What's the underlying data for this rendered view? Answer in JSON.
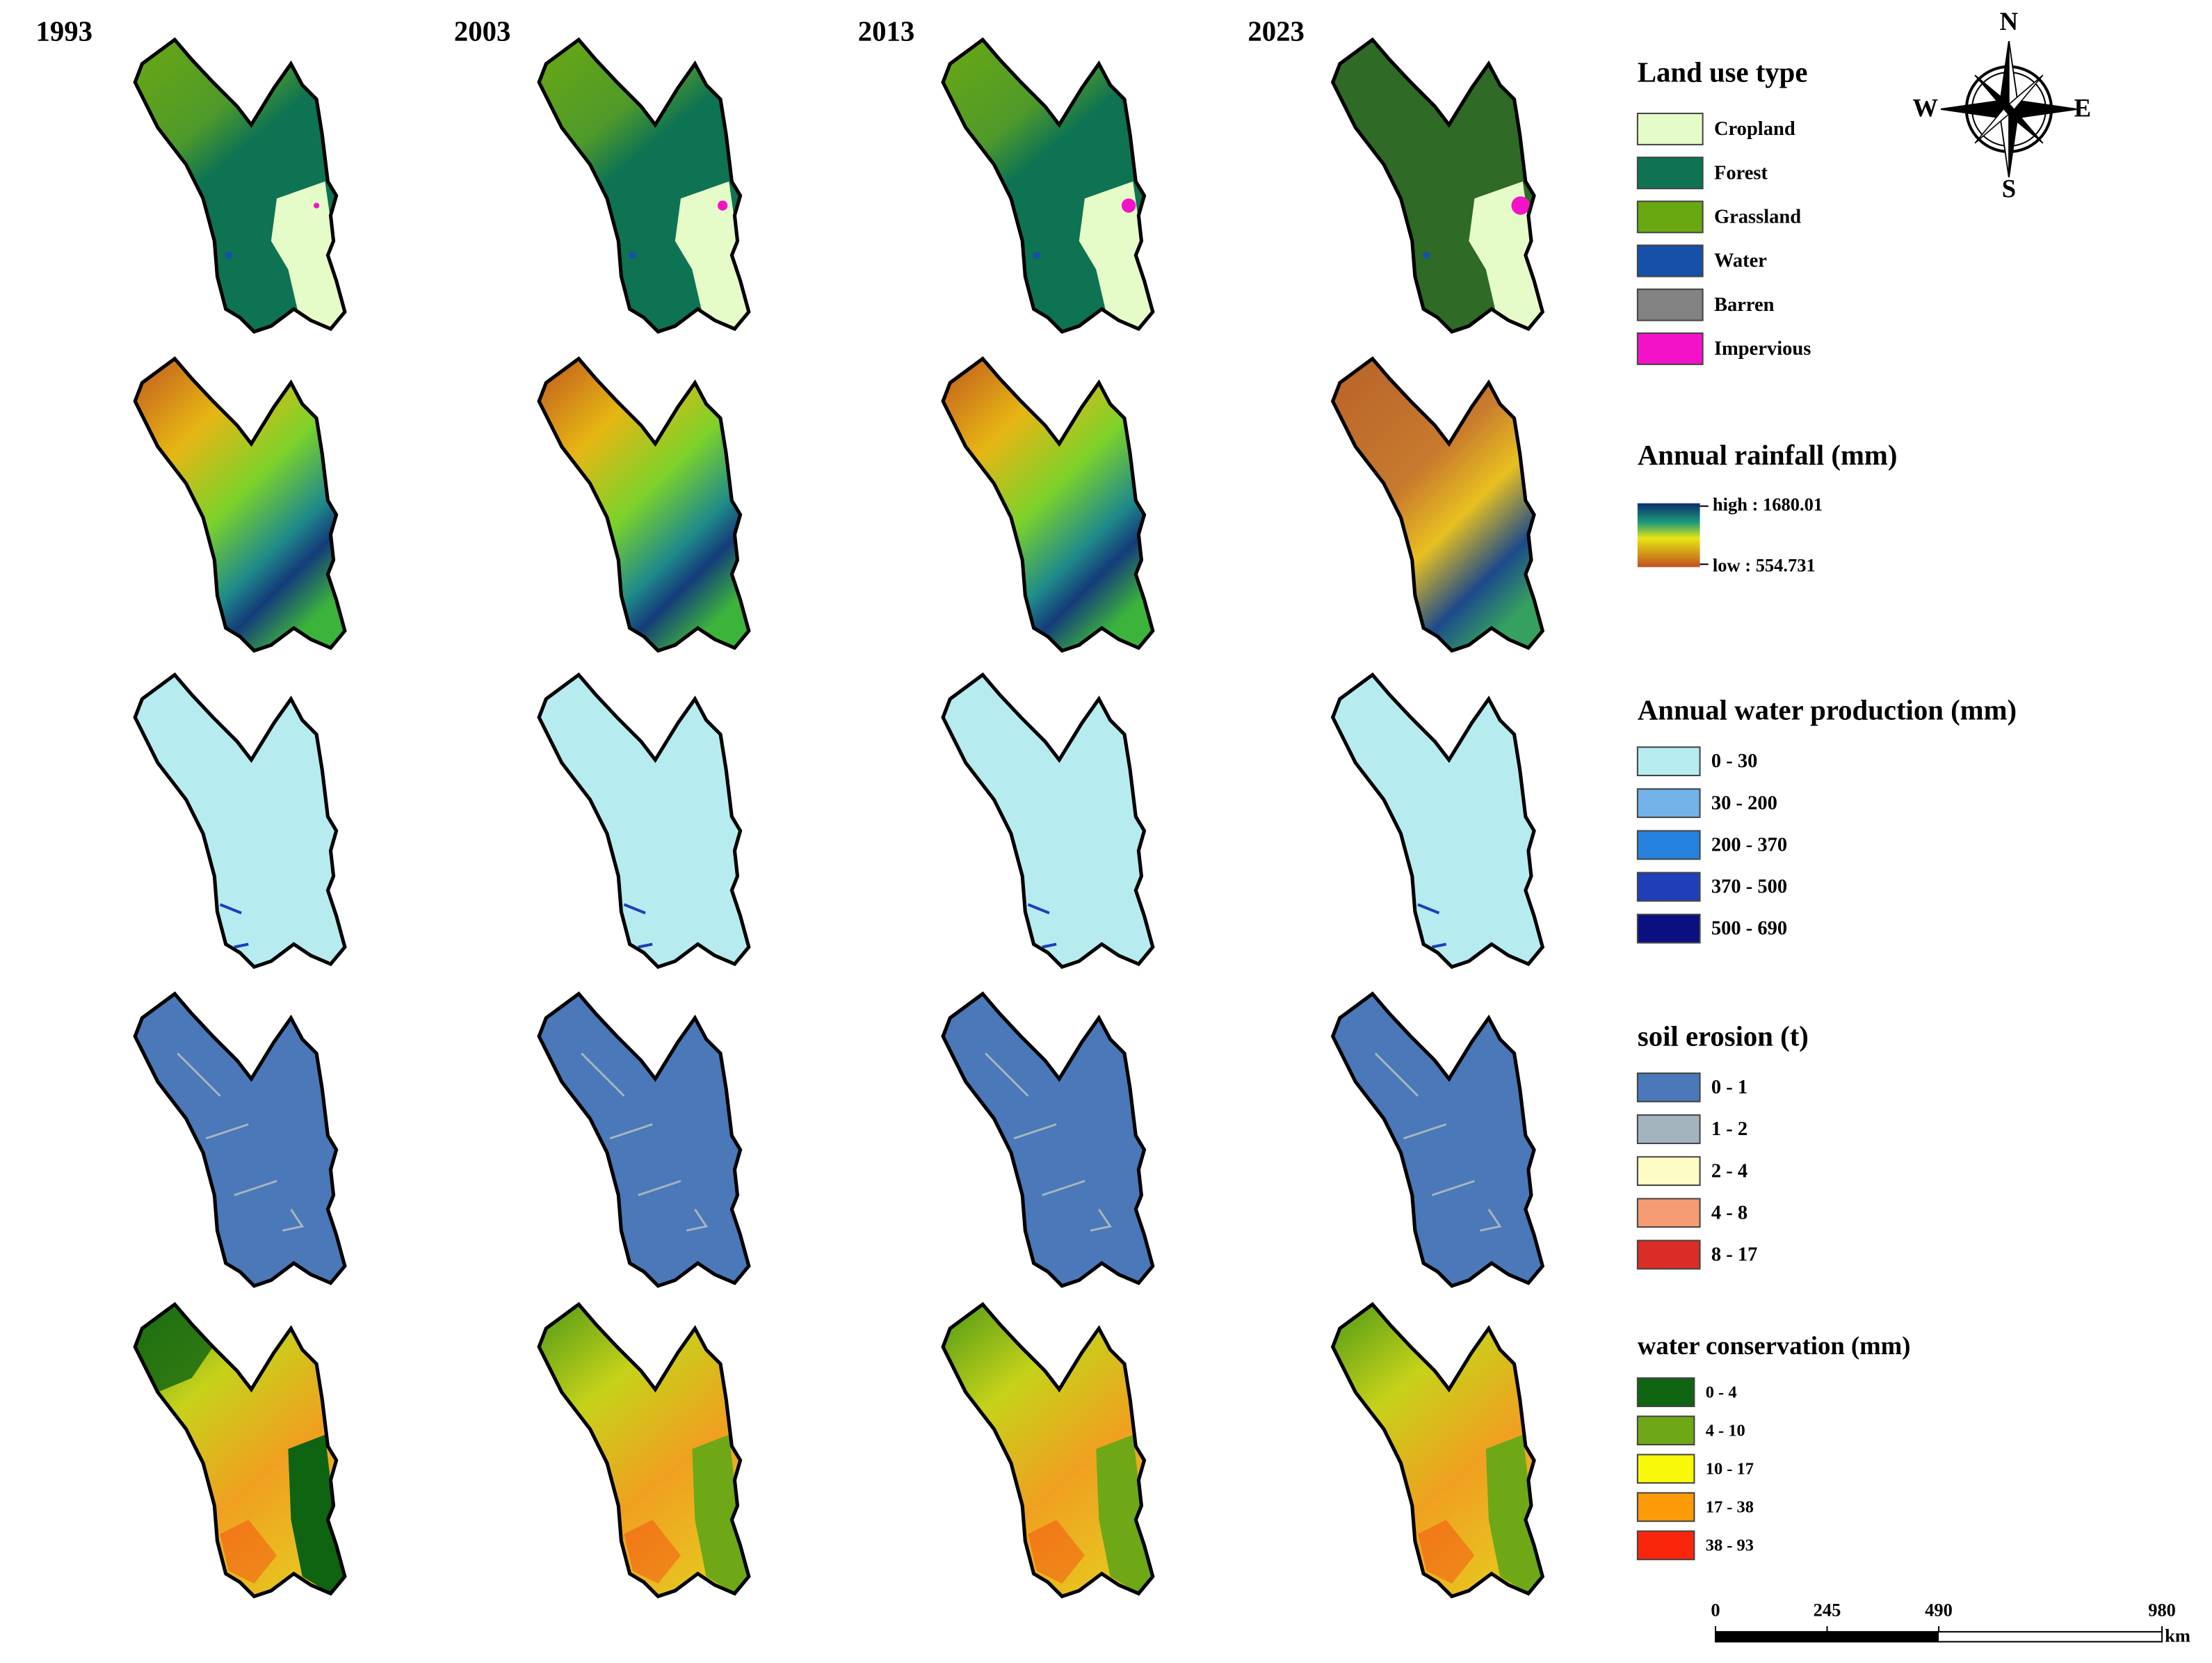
{
  "years": [
    "1993",
    "2003",
    "2013",
    "2023"
  ],
  "legends": [
    {
      "title": "Land use type",
      "items": [
        {
          "label": "Cropland",
          "color": "#e6fcc8"
        },
        {
          "label": "Forest",
          "color": "#0e7352"
        },
        {
          "label": "Grassland",
          "color": "#6aa812"
        },
        {
          "label": "Water",
          "color": "#1650a8"
        },
        {
          "label": "Barren",
          "color": "#828282"
        },
        {
          "label": "Impervious",
          "color": "#f412c8"
        }
      ]
    },
    {
      "title": "Annual rainfall (mm)",
      "high": "high : 1680.01",
      "low": "low : 554.731"
    },
    {
      "title": "Annual water production (mm)",
      "items": [
        {
          "label": "0 - 30",
          "color": "#b6ecf0"
        },
        {
          "label": "30 - 200",
          "color": "#72b2e8"
        },
        {
          "label": "200 - 370",
          "color": "#2682de"
        },
        {
          "label": "370 - 500",
          "color": "#1f3eb8"
        },
        {
          "label": "500 - 690",
          "color": "#0a0f82"
        }
      ]
    },
    {
      "title": "soil erosion (t)",
      "items": [
        {
          "label": "0 - 1",
          "color": "#4a78b8"
        },
        {
          "label": "1 - 2",
          "color": "#a4b4bf"
        },
        {
          "label": "2 - 4",
          "color": "#fdfcc4"
        },
        {
          "label": "4 - 8",
          "color": "#f59c74"
        },
        {
          "label": "8 - 17",
          "color": "#da2d27"
        }
      ]
    },
    {
      "title": "water conservation (mm)",
      "items": [
        {
          "label": "0 - 4",
          "color": "#0e6410"
        },
        {
          "label": "4 - 10",
          "color": "#6fa816"
        },
        {
          "label": "10 - 17",
          "color": "#f8f80a"
        },
        {
          "label": "17 - 38",
          "color": "#fc9a08"
        },
        {
          "label": "38 - 93",
          "color": "#fa260c"
        }
      ]
    }
  ],
  "compass": {
    "n": "N",
    "s": "S",
    "e": "E",
    "w": "W"
  },
  "scale_bar": {
    "ticks": [
      0,
      245,
      490,
      980
    ],
    "unit": "km"
  }
}
